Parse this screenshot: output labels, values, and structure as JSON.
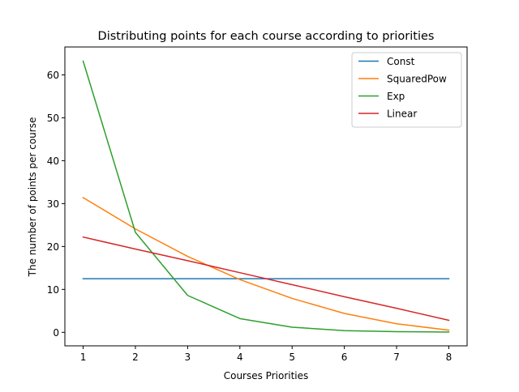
{
  "chart_data": {
    "type": "line",
    "title": "Distributing points for each course according to priorities",
    "xlabel": "Courses Priorities",
    "ylabel": "The number of points per course",
    "x": [
      1,
      2,
      3,
      4,
      5,
      6,
      7,
      8
    ],
    "xticks": [
      1,
      2,
      3,
      4,
      5,
      6,
      7,
      8
    ],
    "yticks": [
      0,
      10,
      20,
      30,
      40,
      50,
      60
    ],
    "xlim": [
      0.65,
      8.35
    ],
    "ylim": [
      -3.15,
      66.5
    ],
    "grid": false,
    "legend_position": "top-right",
    "series": [
      {
        "name": "Const",
        "color": "#1f77b4",
        "values": [
          12.5,
          12.5,
          12.5,
          12.5,
          12.5,
          12.5,
          12.5,
          12.5
        ]
      },
      {
        "name": "SquaredPow",
        "color": "#ff7f0e",
        "values": [
          31.4,
          24.1,
          17.7,
          12.3,
          7.9,
          4.4,
          2.0,
          0.5
        ]
      },
      {
        "name": "Exp",
        "color": "#2ca02c",
        "values": [
          63.2,
          23.3,
          8.6,
          3.2,
          1.2,
          0.4,
          0.15,
          0.05
        ]
      },
      {
        "name": "Linear",
        "color": "#d62728",
        "values": [
          22.2,
          19.4,
          16.7,
          13.9,
          11.1,
          8.3,
          5.6,
          2.8
        ]
      }
    ]
  }
}
